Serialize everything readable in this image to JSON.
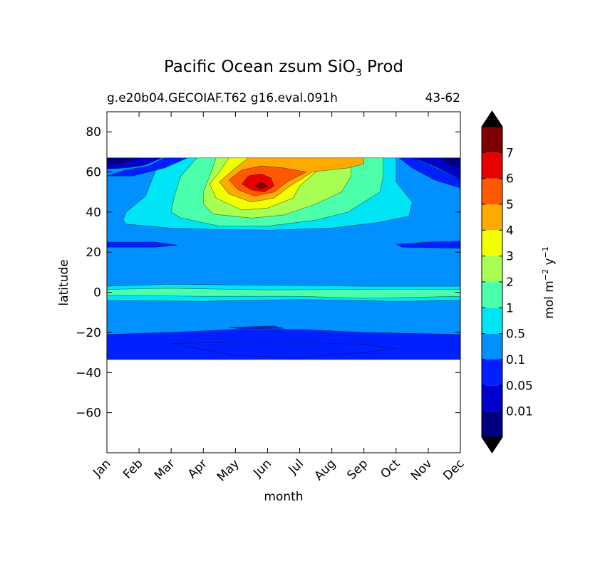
{
  "chart_data": {
    "type": "heatmap",
    "title": "Pacific Ocean zsum SiO",
    "title_subscript": "3",
    "title_suffix": "Prod",
    "subtitle_left": "g.e20b04.GECOIAF.T62 g16.eval.091h",
    "subtitle_right": "43-62",
    "xlabel": "month",
    "ylabel": "latitude",
    "x_categories": [
      "Jan",
      "Feb",
      "Mar",
      "Apr",
      "May",
      "Jun",
      "Jul",
      "Aug",
      "Sep",
      "Oct",
      "Nov",
      "Dec"
    ],
    "yticks": [
      80,
      60,
      40,
      20,
      0,
      -20,
      -40,
      -60
    ],
    "ylim": [
      -80,
      90
    ],
    "grid": false,
    "colorbar": {
      "label": "mol m",
      "label_exp1": "−2",
      "label_mid": " y",
      "label_exp2": "−1",
      "levels": [
        "0.01",
        "0.05",
        "0.1",
        "0.5",
        "1",
        "2",
        "3",
        "4",
        "5",
        "6",
        "7"
      ],
      "colors": [
        "#00007f",
        "#0000cd",
        "#0020ff",
        "#0090ff",
        "#00e5f5",
        "#4cffaa",
        "#a6ff52",
        "#f0ff06",
        "#ffaa00",
        "#ff5800",
        "#e80000",
        "#7f0000"
      ],
      "extend": "both"
    },
    "data_extent": {
      "lat_min": -33.5,
      "lat_max": 67
    },
    "contour_bands": [
      {
        "level": "0.1-0.5",
        "description": "background across domain"
      },
      {
        "level": "0.05-0.1",
        "region": "Jan-Dec, lat -33 to -21 (southern band); Jan and Nov-Dec, lat 22-25"
      },
      {
        "level": "0.01-0.05",
        "region": "Jan, lat 62-67; Dec, lat 58-67"
      },
      {
        "level": "0.5-1",
        "region": "Mar-Oct, lat 32-67"
      },
      {
        "level": "1-2",
        "region": "Apr-Sep, lat 35-67; equatorial band lat -3 to 2"
      },
      {
        "level": "2-3",
        "region": "Apr-Aug, lat 38-66"
      },
      {
        "level": "3-4",
        "region": "Apr-Jul, lat 42-64"
      },
      {
        "level": "4-5",
        "region": "May-Jul, lat 45-67"
      },
      {
        "level": "5-6",
        "region": "May-Jun, lat 48-62"
      },
      {
        "level": "6-7",
        "region": "May, lat 50-58"
      },
      {
        "level": ">7",
        "region": "May, lat 53-54"
      }
    ]
  }
}
